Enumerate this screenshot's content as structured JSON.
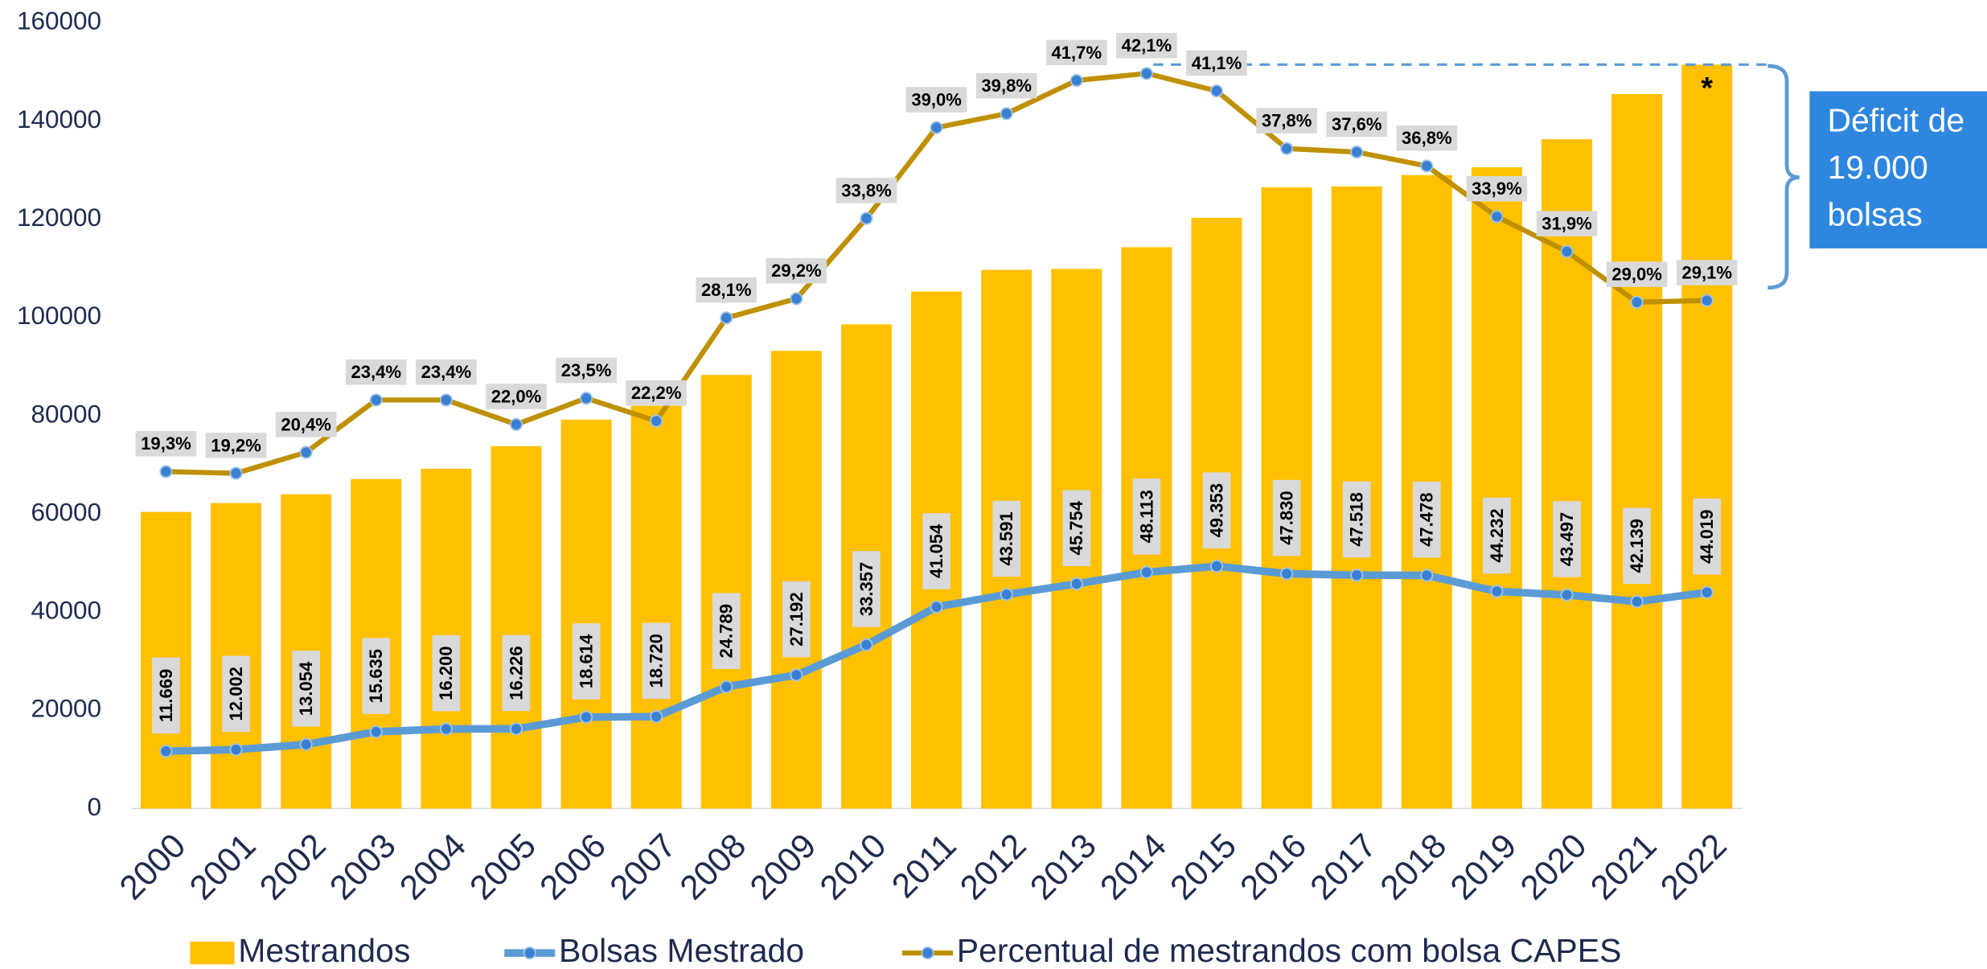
{
  "chart_data": {
    "type": "bar",
    "categories": [
      "2000",
      "2001",
      "2002",
      "2003",
      "2004",
      "2005",
      "2006",
      "2007",
      "2008",
      "2009",
      "2010",
      "2011",
      "2012",
      "2013",
      "2014",
      "2015",
      "2016",
      "2017",
      "2018",
      "2019",
      "2020",
      "2021",
      "2022"
    ],
    "series": [
      {
        "name": "Mestrandos",
        "type": "bar",
        "color": "#ffc000",
        "values": [
          60400,
          62200,
          64000,
          67100,
          69200,
          73800,
          79200,
          82000,
          88300,
          93200,
          98600,
          105300,
          109700,
          109900,
          114300,
          120300,
          126500,
          126700,
          129000,
          130600,
          136300,
          145500,
          151500
        ]
      },
      {
        "name": "Bolsas Mestrado",
        "type": "line",
        "color": "#5b9bd5",
        "values": [
          11669,
          12002,
          13054,
          15635,
          16200,
          16226,
          18614,
          18720,
          24789,
          27192,
          33357,
          41054,
          43591,
          45754,
          48113,
          49353,
          47830,
          47518,
          47478,
          44232,
          43497,
          42139,
          44019
        ],
        "value_labels": [
          "11.669",
          "12.002",
          "13.054",
          "15.635",
          "16.200",
          "16.226",
          "18.614",
          "18.720",
          "24.789",
          "27.192",
          "33.357",
          "41.054",
          "43.591",
          "45.754",
          "48.113",
          "49.353",
          "47.830",
          "47.518",
          "47.478",
          "44.232",
          "43.497",
          "42.139",
          "44.019"
        ]
      },
      {
        "name": "Percentual de mestrandos com bolsa CAPES",
        "type": "line",
        "axis": "y2",
        "color": "#bf9000",
        "values": [
          19.3,
          19.2,
          20.4,
          23.4,
          23.4,
          22.0,
          23.5,
          22.2,
          28.1,
          29.2,
          33.8,
          39.0,
          39.8,
          41.7,
          42.1,
          41.1,
          37.8,
          37.6,
          36.8,
          33.9,
          31.9,
          29.0,
          29.1
        ],
        "value_labels": [
          "19,3%",
          "19,2%",
          "20,4%",
          "23,4%",
          "23,4%",
          "22,0%",
          "23,5%",
          "22,2%",
          "28,1%",
          "29,2%",
          "33,8%",
          "39,0%",
          "39,8%",
          "41,7%",
          "42,1%",
          "41,1%",
          "37,8%",
          "37,6%",
          "36,8%",
          "33,9%",
          "31,9%",
          "29,0%",
          "29,1%"
        ]
      }
    ],
    "ylim": [
      0,
      160000
    ],
    "yticks": [
      0,
      20000,
      40000,
      60000,
      80000,
      100000,
      120000,
      140000,
      160000
    ],
    "y2lim": [
      0,
      45
    ],
    "annotations": {
      "deficit": [
        "Déficit de",
        "19.000",
        "bolsas"
      ],
      "star": "*"
    }
  }
}
